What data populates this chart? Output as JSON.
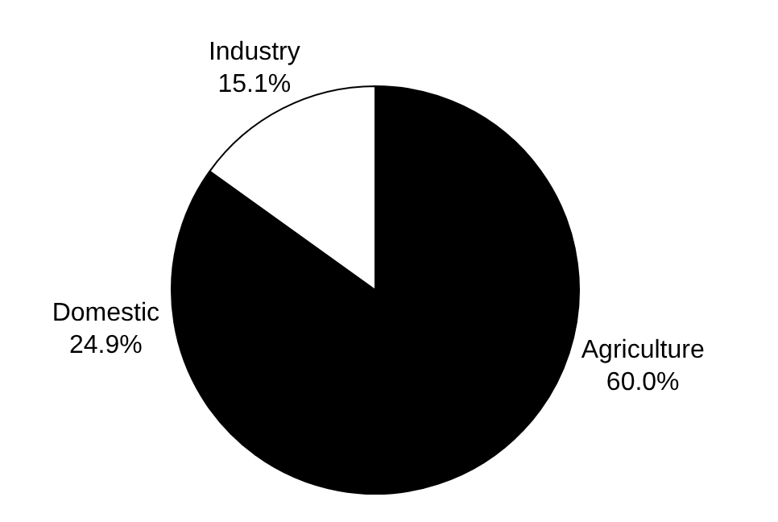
{
  "chart_data": {
    "type": "pie",
    "categories": [
      "Agriculture",
      "Domestic",
      "Industry"
    ],
    "values": [
      60.0,
      24.9,
      15.1
    ],
    "colors": [
      "#000000",
      "#000000",
      "#ffffff"
    ],
    "value_labels": [
      "60.0%",
      "24.9%",
      "15.1%"
    ],
    "legend": false
  }
}
